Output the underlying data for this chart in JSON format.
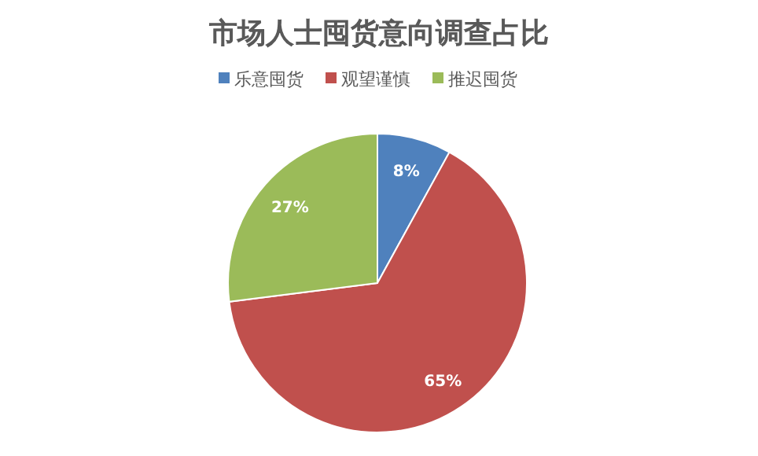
{
  "chart_data": {
    "type": "pie",
    "title": "市场人士囤货意向调查占比",
    "categories": [
      "乐意囤货",
      "观望谨慎",
      "推迟囤货"
    ],
    "values": [
      8,
      65,
      27
    ],
    "value_labels": [
      "8%",
      "65%",
      "27%"
    ],
    "colors": [
      "#4f81bd",
      "#c0504d",
      "#9bbb59"
    ],
    "legend": "top"
  }
}
